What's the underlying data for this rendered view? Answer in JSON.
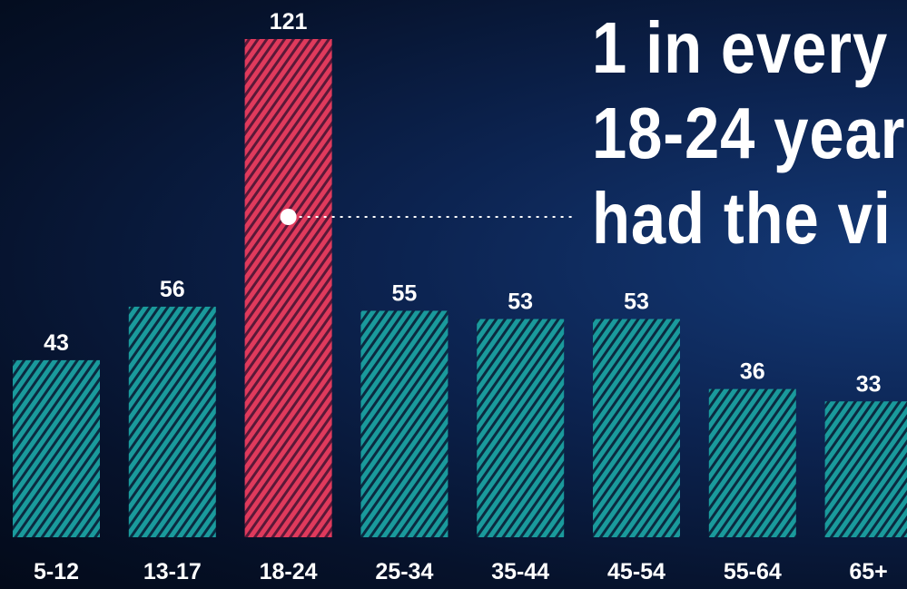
{
  "chart_data": {
    "type": "bar",
    "title": "",
    "xlabel": "",
    "ylabel": "",
    "categories": [
      "5-12",
      "13-17",
      "18-24",
      "25-34",
      "35-44",
      "45-54",
      "55-64",
      "65+"
    ],
    "values": [
      43,
      56,
      121,
      55,
      53,
      53,
      36,
      33
    ],
    "highlight_index": 2,
    "ylim": [
      0,
      121
    ],
    "grid": false,
    "legend": "none"
  },
  "headline": {
    "line1": "1 in every",
    "line2": "18-24 year",
    "line3": "had the vi"
  },
  "colors": {
    "bar": "#1a9a9c",
    "bar_highlight": "#e03a5c",
    "stripe": "#0a1f3a",
    "text": "#ffffff",
    "background": "#06122b"
  }
}
